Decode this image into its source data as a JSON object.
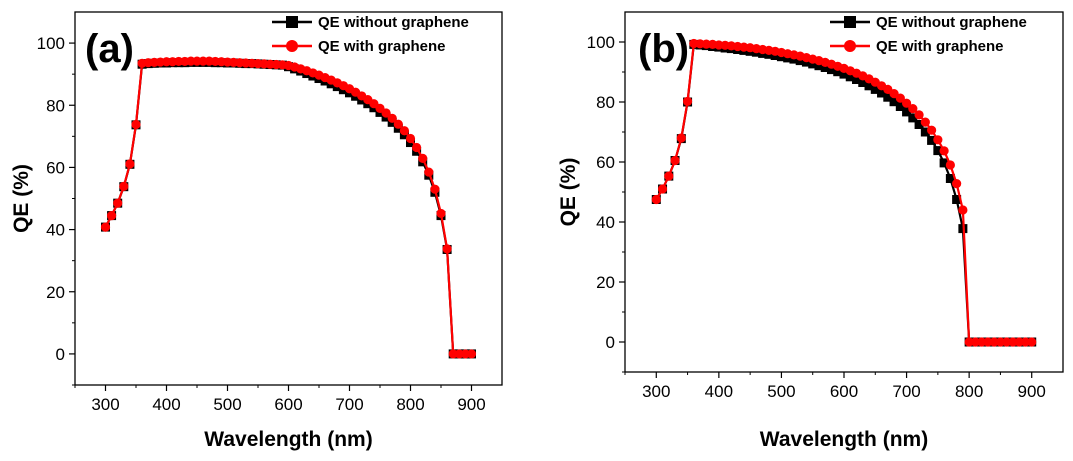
{
  "chart_data": [
    {
      "type": "line",
      "panel_label": "(a)",
      "xlabel": "Wavelength (nm)",
      "ylabel": "QE (%)",
      "xlim": [
        250,
        950
      ],
      "ylim": [
        -10,
        110
      ],
      "xticks": [
        300,
        400,
        500,
        600,
        700,
        800,
        900
      ],
      "yticks": [
        0,
        20,
        40,
        60,
        80,
        100
      ],
      "legend_position": "top-right",
      "x": [
        300,
        310,
        320,
        330,
        340,
        350,
        360,
        370,
        380,
        390,
        400,
        410,
        420,
        430,
        440,
        450,
        460,
        470,
        480,
        490,
        500,
        510,
        520,
        530,
        540,
        550,
        560,
        570,
        580,
        590,
        600,
        610,
        620,
        630,
        640,
        650,
        660,
        670,
        680,
        690,
        700,
        710,
        720,
        730,
        740,
        750,
        760,
        770,
        780,
        790,
        800,
        810,
        820,
        830,
        840,
        850,
        860,
        870,
        880,
        890,
        900
      ],
      "series": [
        {
          "name": "QE without graphene",
          "color": "#000000",
          "marker": "square",
          "values": [
            40.8,
            44.5,
            48.5,
            53.8,
            61.0,
            73.7,
            93.2,
            93.4,
            93.5,
            93.6,
            93.6,
            93.7,
            93.7,
            93.7,
            93.8,
            93.8,
            93.8,
            93.8,
            93.7,
            93.7,
            93.6,
            93.6,
            93.5,
            93.4,
            93.4,
            93.3,
            93.2,
            93.1,
            93.0,
            92.9,
            92.4,
            91.7,
            91.0,
            90.2,
            89.4,
            88.6,
            87.8,
            86.9,
            86.0,
            85.0,
            84.0,
            82.9,
            81.7,
            80.5,
            79.2,
            77.7,
            76.2,
            74.5,
            72.6,
            70.5,
            68.0,
            65.2,
            61.8,
            57.5,
            52.0,
            44.5,
            33.6,
            0,
            0,
            0,
            0
          ]
        },
        {
          "name": "QE with graphene",
          "color": "#ff0000",
          "marker": "circle",
          "values": [
            40.8,
            44.5,
            48.5,
            53.9,
            61.1,
            73.8,
            93.5,
            93.7,
            93.8,
            93.9,
            94.0,
            94.0,
            94.1,
            94.1,
            94.2,
            94.2,
            94.2,
            94.2,
            94.1,
            94.0,
            93.9,
            93.8,
            93.7,
            93.6,
            93.5,
            93.4,
            93.3,
            93.2,
            93.1,
            93.0,
            92.8,
            92.3,
            91.7,
            91.1,
            90.4,
            89.7,
            88.9,
            88.1,
            87.2,
            86.3,
            85.3,
            84.2,
            83.0,
            81.8,
            80.5,
            79.0,
            77.5,
            75.8,
            73.9,
            71.8,
            69.3,
            66.4,
            62.9,
            58.5,
            53.0,
            45.2,
            33.8,
            0,
            0,
            0,
            0
          ]
        }
      ]
    },
    {
      "type": "line",
      "panel_label": "(b)",
      "xlabel": "Wavelength (nm)",
      "ylabel": "QE (%)",
      "xlim": [
        250,
        950
      ],
      "ylim": [
        -10,
        110
      ],
      "xticks": [
        300,
        400,
        500,
        600,
        700,
        800,
        900
      ],
      "yticks": [
        0,
        20,
        40,
        60,
        80,
        100
      ],
      "legend_position": "top-right",
      "x": [
        300,
        310,
        320,
        330,
        340,
        350,
        360,
        370,
        380,
        390,
        400,
        410,
        420,
        430,
        440,
        450,
        460,
        470,
        480,
        490,
        500,
        510,
        520,
        530,
        540,
        550,
        560,
        570,
        580,
        590,
        600,
        610,
        620,
        630,
        640,
        650,
        660,
        670,
        680,
        690,
        700,
        710,
        720,
        730,
        740,
        750,
        760,
        770,
        780,
        790,
        800,
        810,
        820,
        830,
        840,
        850,
        860,
        870,
        880,
        890,
        900
      ],
      "series": [
        {
          "name": "QE without graphene",
          "color": "#000000",
          "marker": "square",
          "values": [
            47.5,
            51.0,
            55.3,
            60.5,
            67.8,
            80.0,
            99.2,
            99.0,
            98.8,
            98.5,
            98.3,
            98.0,
            97.8,
            97.5,
            97.2,
            96.9,
            96.6,
            96.2,
            95.9,
            95.5,
            95.1,
            94.7,
            94.3,
            93.8,
            93.3,
            92.7,
            92.1,
            91.5,
            90.8,
            90.1,
            89.3,
            88.4,
            87.5,
            86.5,
            85.4,
            84.2,
            83.0,
            81.6,
            80.1,
            78.5,
            76.7,
            74.7,
            72.5,
            70.0,
            67.2,
            63.8,
            59.7,
            54.5,
            47.5,
            37.8,
            0,
            0,
            0,
            0,
            0,
            0,
            0,
            0,
            0,
            0,
            0
          ]
        },
        {
          "name": "QE with graphene",
          "color": "#ff0000",
          "marker": "circle",
          "values": [
            47.5,
            51.0,
            55.3,
            60.5,
            68.0,
            80.2,
            99.5,
            99.4,
            99.3,
            99.2,
            99.0,
            98.9,
            98.7,
            98.5,
            98.3,
            98.1,
            97.8,
            97.5,
            97.2,
            96.9,
            96.5,
            96.1,
            95.7,
            95.3,
            94.8,
            94.3,
            93.8,
            93.2,
            92.6,
            91.9,
            91.2,
            90.4,
            89.6,
            88.7,
            87.7,
            86.6,
            85.4,
            84.2,
            82.8,
            81.3,
            79.6,
            77.8,
            75.7,
            73.3,
            70.6,
            67.4,
            63.7,
            59.0,
            52.8,
            44.0,
            0,
            0,
            0,
            0,
            0,
            0,
            0,
            0,
            0,
            0,
            0
          ]
        }
      ]
    }
  ]
}
